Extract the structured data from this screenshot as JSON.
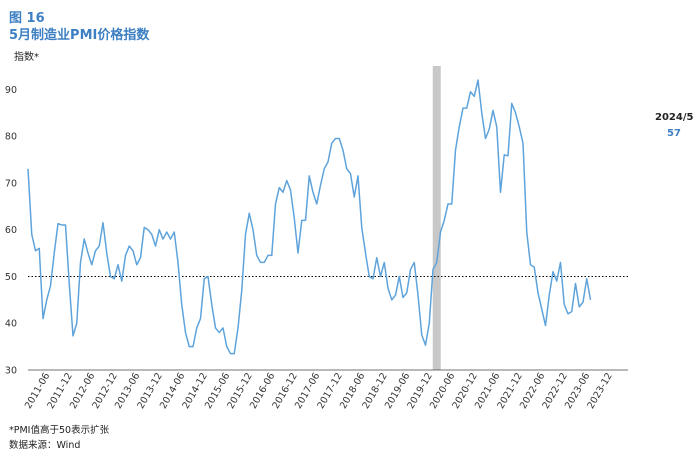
{
  "figure": {
    "number": "图 16",
    "title": "5月制造业PMI价格指数"
  },
  "latest": {
    "label": "2024/5",
    "value": "57"
  },
  "notes": {
    "note1": "*PMI值高于50表示扩张",
    "source": "数据来源：Wind"
  },
  "colors": {
    "line": "#5ea3db",
    "title": "#3d7fc3",
    "shade": "#c8c8c8",
    "threshold": "#000000"
  },
  "chart_data": {
    "type": "line",
    "ylabel": "指数*",
    "ylim": [
      30,
      95
    ],
    "yticks": [
      30,
      40,
      50,
      60,
      70,
      80,
      90
    ],
    "x_tick_labels": [
      "2011-06",
      "2011-12",
      "2012-06",
      "2012-12",
      "2013-06",
      "2013-12",
      "2014-06",
      "2014-12",
      "2015-06",
      "2015-12",
      "2016-06",
      "2016-12",
      "2017-06",
      "2017-12",
      "2018-06",
      "2018-12",
      "2019-06",
      "2019-12",
      "2020-06",
      "2020-12",
      "2021-06",
      "2021-12",
      "2022-06",
      "2022-12",
      "2023-06",
      "2023-12"
    ],
    "threshold": 50,
    "shaded_period": "2020-02",
    "series": [
      {
        "start": "2011-01",
        "values": [
          73,
          59,
          55.5,
          56,
          41,
          45,
          48,
          55,
          61.3,
          61,
          61,
          48.5,
          37.3,
          40,
          53,
          58,
          55,
          52.5,
          55.5,
          56.5,
          61.5,
          55,
          50,
          49.5,
          52.5,
          49,
          54.5,
          56.5,
          55.5,
          52.5,
          54,
          60.5,
          60,
          59,
          56.5,
          60,
          58,
          59.5,
          58,
          59.5,
          53,
          44,
          38,
          35,
          35,
          39,
          41,
          49.5,
          50,
          44,
          39,
          38,
          39,
          35,
          33.5,
          33.5,
          39,
          47,
          59,
          63.5,
          60,
          54.5,
          53,
          53,
          54.5,
          54.5,
          65.5,
          69,
          68,
          70.5,
          68.5,
          62.5,
          55,
          62,
          62,
          71.5,
          68,
          65.5,
          69.5,
          73,
          74.5,
          78.5,
          79.5,
          79.5,
          77,
          73,
          72,
          67,
          71.5,
          60.5,
          55,
          50,
          49.5,
          54,
          50,
          53,
          47.5,
          45,
          46,
          50,
          45.5,
          46.5,
          51.5,
          53,
          46,
          37.5,
          35.3,
          40,
          51.5,
          53,
          59.5,
          62,
          65.5,
          65.5,
          77,
          82,
          86,
          86,
          89.5,
          88.5,
          92,
          85,
          79.5,
          81.5,
          85.5,
          82,
          68,
          76,
          75.8,
          87,
          85,
          82,
          78.5,
          59.5,
          52.5,
          52,
          46.5,
          43,
          39.5,
          46,
          51,
          49,
          53,
          44,
          42,
          42.5,
          48.5,
          43.5,
          44.5,
          49.5,
          45
        ]
      }
    ]
  }
}
